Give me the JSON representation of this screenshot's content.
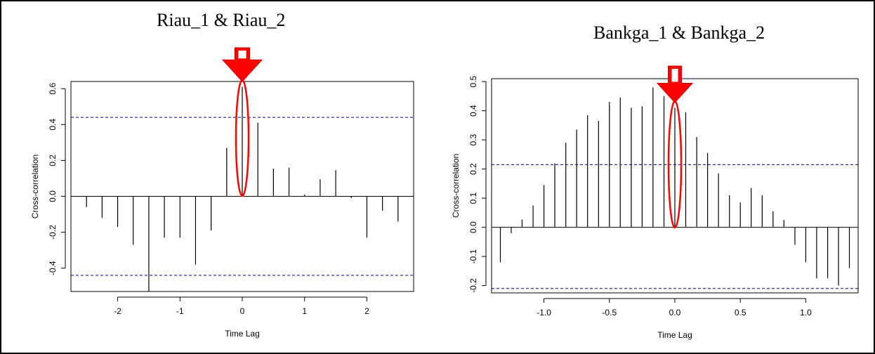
{
  "charts_text": {
    "left_title": "Riau_1 & Riau_2",
    "right_title": "Bankga_1 & Bankga_2"
  },
  "colors": {
    "highlight": "#ff0000",
    "bound_line": "#00008b",
    "stem": "#000000"
  },
  "chart_data": [
    {
      "type": "bar",
      "title": "Riau_1 & Riau_2",
      "xlabel": "Time Lag",
      "ylabel": "Cross-correlation",
      "xlim": [
        -2.75,
        2.75
      ],
      "ylim": [
        -0.53,
        0.64
      ],
      "xticks": [
        -2,
        -1,
        0,
        1,
        2
      ],
      "xtick_labels": [
        "-2",
        "-1",
        "0",
        "1",
        "2"
      ],
      "yticks": [
        -0.4,
        -0.2,
        0.0,
        0.2,
        0.4,
        0.6
      ],
      "ytick_labels": [
        "-0.4",
        "-0.2",
        "0.0",
        "0.2",
        "0.4",
        "0.6"
      ],
      "x": [
        -2.5,
        -2.25,
        -2.0,
        -1.75,
        -1.5,
        -1.25,
        -1.0,
        -0.75,
        -0.5,
        -0.25,
        0.0,
        0.25,
        0.5,
        0.75,
        1.0,
        1.25,
        1.5,
        1.75,
        2.0,
        2.25,
        2.5
      ],
      "values": [
        -0.06,
        -0.12,
        -0.17,
        -0.27,
        -0.53,
        -0.23,
        -0.23,
        -0.38,
        -0.19,
        0.27,
        0.61,
        0.41,
        0.155,
        0.16,
        0.01,
        0.095,
        0.145,
        -0.01,
        -0.23,
        -0.08,
        -0.14
      ],
      "confidence_bounds": [
        0.44,
        -0.44
      ],
      "highlight_x": 0.0
    },
    {
      "type": "bar",
      "title": "Bankga_1 & Bankga_2",
      "xlabel": "Time Lag",
      "ylabel": "Cross-correlation",
      "xlim": [
        -1.4,
        1.4
      ],
      "ylim": [
        -0.225,
        0.51
      ],
      "xticks": [
        -1.0,
        -0.5,
        0.0,
        0.5,
        1.0
      ],
      "xtick_labels": [
        "-1.0",
        "-0.5",
        "0.0",
        "0.5",
        "1.0"
      ],
      "yticks": [
        -0.2,
        -0.1,
        0.0,
        0.1,
        0.2,
        0.3,
        0.4,
        0.5
      ],
      "ytick_labels": [
        "-0.2",
        "-0.1",
        "0.0",
        "0.1",
        "0.2",
        "0.3",
        "0.4",
        "0.5"
      ],
      "x": [
        -1.333,
        -1.25,
        -1.167,
        -1.083,
        -1.0,
        -0.917,
        -0.833,
        -0.75,
        -0.667,
        -0.583,
        -0.5,
        -0.417,
        -0.333,
        -0.25,
        -0.167,
        -0.083,
        0.0,
        0.083,
        0.167,
        0.25,
        0.333,
        0.417,
        0.5,
        0.583,
        0.667,
        0.75,
        0.833,
        0.917,
        1.0,
        1.083,
        1.167,
        1.25,
        1.333
      ],
      "values": [
        -0.12,
        -0.02,
        0.027,
        0.075,
        0.145,
        0.22,
        0.29,
        0.335,
        0.385,
        0.365,
        0.43,
        0.445,
        0.41,
        0.415,
        0.48,
        0.45,
        0.41,
        0.395,
        0.31,
        0.255,
        0.185,
        0.11,
        0.085,
        0.135,
        0.11,
        0.055,
        0.025,
        -0.06,
        -0.12,
        -0.175,
        -0.175,
        -0.2,
        -0.14
      ],
      "confidence_bounds": [
        0.215,
        -0.21
      ],
      "highlight_x": 0.0
    }
  ]
}
